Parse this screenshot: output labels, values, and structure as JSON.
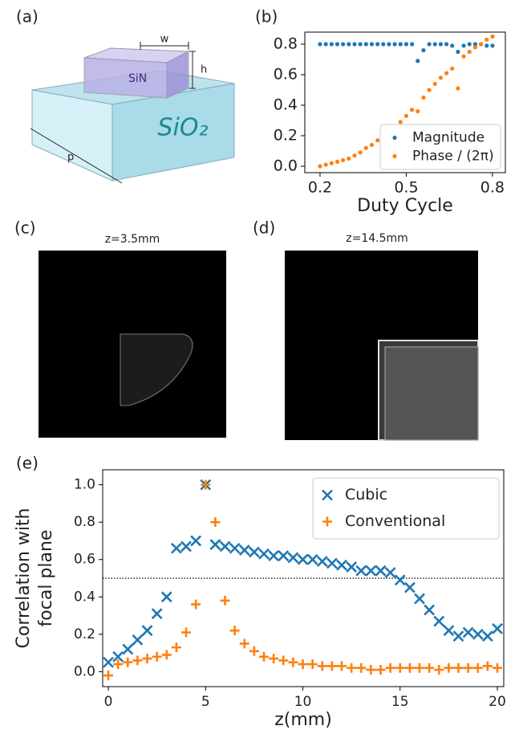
{
  "figure": {
    "panel_labels": [
      "(a)",
      "(b)",
      "(c)",
      "(d)",
      "(e)"
    ],
    "diagram": {
      "width_label": "w",
      "height_label": "h",
      "core": "SiN",
      "substrate": "SiO₂",
      "period_label": "p"
    },
    "images": [
      {
        "title": "z=3.5mm"
      },
      {
        "title": "z=14.5mm"
      }
    ]
  },
  "chart_data": [
    {
      "type": "scatter",
      "xlabel": "Duty Cycle",
      "x": [
        0.2,
        0.22,
        0.24,
        0.26,
        0.28,
        0.3,
        0.32,
        0.34,
        0.36,
        0.38,
        0.4,
        0.42,
        0.44,
        0.46,
        0.48,
        0.5,
        0.52,
        0.54,
        0.56,
        0.58,
        0.6,
        0.62,
        0.64,
        0.66,
        0.68,
        0.7,
        0.72,
        0.74,
        0.76,
        0.78,
        0.8
      ],
      "series": [
        {
          "name": "Magnitude",
          "color": "#1f77b4",
          "marker": "o",
          "values": [
            0.8,
            0.8,
            0.8,
            0.8,
            0.8,
            0.8,
            0.8,
            0.8,
            0.8,
            0.8,
            0.8,
            0.8,
            0.8,
            0.8,
            0.8,
            0.8,
            0.8,
            0.69,
            0.76,
            0.8,
            0.8,
            0.8,
            0.8,
            0.79,
            0.75,
            0.79,
            0.8,
            0.8,
            0.8,
            0.79,
            0.79
          ]
        },
        {
          "name": "Phase / (2π)",
          "color": "#ff7f0e",
          "marker": "o",
          "values": [
            0.0,
            0.01,
            0.02,
            0.03,
            0.04,
            0.05,
            0.07,
            0.09,
            0.12,
            0.14,
            0.17,
            0.2,
            0.23,
            0.26,
            0.29,
            0.33,
            0.37,
            0.36,
            0.45,
            0.5,
            0.54,
            0.58,
            0.61,
            0.64,
            0.51,
            0.72,
            0.75,
            0.78,
            0.8,
            0.83,
            0.85
          ]
        }
      ],
      "xlim": [
        0.147,
        0.845
      ],
      "ylim": [
        -0.042,
        0.879
      ],
      "xticks": [
        0.2,
        0.5,
        0.8
      ],
      "yticks": [
        {
          "value": 0,
          "label": "0.0"
        },
        0.2,
        0.4,
        0.6,
        0.8
      ],
      "legend": "lower right"
    },
    {
      "type": "scatter",
      "xlabel": "z(mm)",
      "ylabel": [
        "Correlation with",
        "focal plane"
      ],
      "x": [
        0,
        0.5,
        1,
        1.5,
        2,
        2.5,
        3,
        3.5,
        4,
        4.5,
        5,
        5.5,
        6,
        6.5,
        7,
        7.5,
        8,
        8.5,
        9,
        9.5,
        10,
        10.5,
        11,
        11.5,
        12,
        12.5,
        13,
        13.5,
        14,
        14.5,
        15,
        15.5,
        16,
        16.5,
        17,
        17.5,
        18,
        18.5,
        19,
        19.5,
        20
      ],
      "series": [
        {
          "name": "Cubic",
          "color": "#1f77b4",
          "marker": "x",
          "values": [
            0.05,
            0.08,
            0.12,
            0.17,
            0.22,
            0.31,
            0.4,
            0.66,
            0.67,
            0.7,
            1.0,
            0.68,
            0.67,
            0.66,
            0.65,
            0.64,
            0.63,
            0.62,
            0.62,
            0.61,
            0.6,
            0.6,
            0.59,
            0.58,
            0.57,
            0.56,
            0.54,
            0.54,
            0.54,
            0.53,
            0.49,
            0.45,
            0.39,
            0.33,
            0.27,
            0.22,
            0.19,
            0.21,
            0.2,
            0.19,
            0.23
          ]
        },
        {
          "name": "Conventional",
          "color": "#ff7f0e",
          "marker": "+",
          "values": [
            -0.02,
            0.04,
            0.05,
            0.06,
            0.07,
            0.08,
            0.09,
            0.13,
            0.21,
            0.36,
            1.0,
            0.8,
            0.38,
            0.22,
            0.15,
            0.11,
            0.08,
            0.07,
            0.06,
            0.05,
            0.04,
            0.04,
            0.03,
            0.03,
            0.03,
            0.02,
            0.02,
            0.01,
            0.01,
            0.02,
            0.02,
            0.02,
            0.02,
            0.02,
            0.01,
            0.02,
            0.02,
            0.02,
            0.02,
            0.03,
            0.02
          ]
        }
      ],
      "reference_line": 0.5,
      "xlim": [
        -0.29,
        20.33
      ],
      "ylim": [
        -0.08,
        1.08
      ],
      "xticks": [
        0,
        5,
        10,
        15,
        20
      ],
      "yticks": [
        {
          "value": 0,
          "label": "0.0"
        },
        0.2,
        0.4,
        0.6,
        0.8,
        {
          "value": 1,
          "label": "1.0"
        }
      ],
      "legend": "upper right"
    }
  ]
}
